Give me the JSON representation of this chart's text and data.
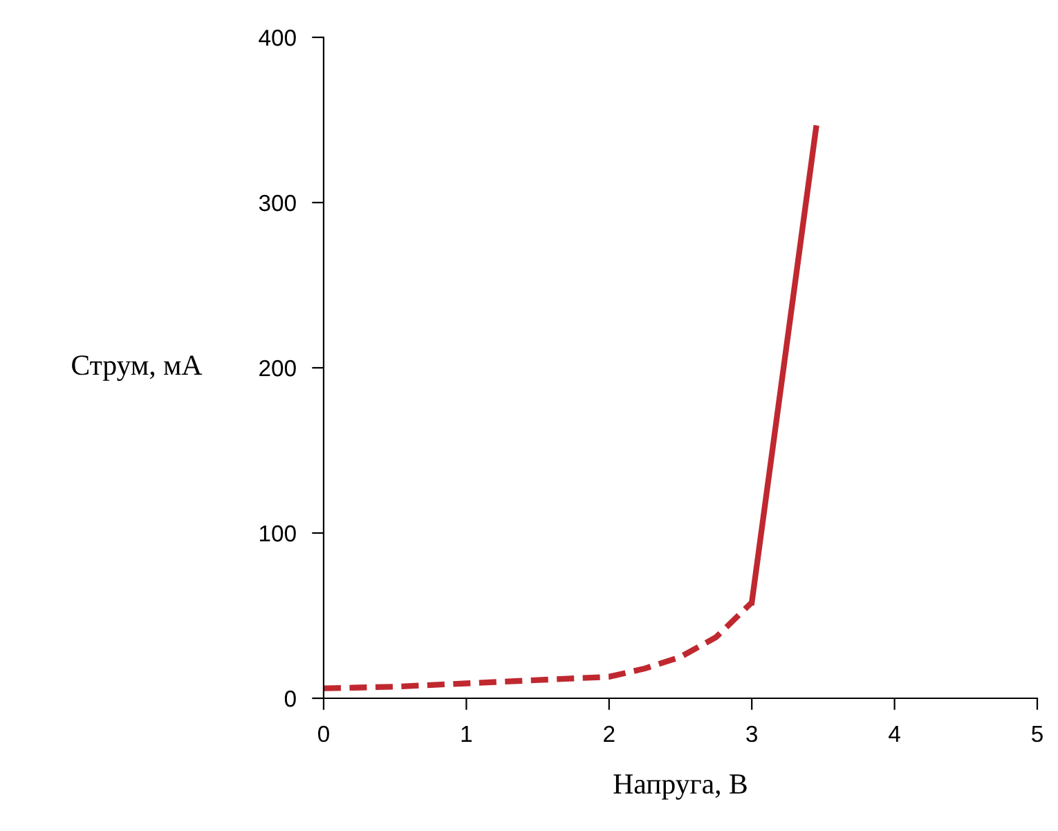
{
  "chart_data": {
    "type": "line",
    "xlabel": "Напруга, В",
    "ylabel": "Струм, мА",
    "xlim": [
      0,
      5
    ],
    "xticks": [
      0,
      1,
      2,
      3,
      4,
      5
    ],
    "ylim": [
      0,
      400
    ],
    "yticks": [
      0,
      100,
      200,
      300,
      400
    ],
    "grid": false,
    "marker": "none",
    "series": [
      {
        "color": "#c0282f",
        "line_style": "dashed",
        "x": [
          0,
          0.5,
          1,
          1.5,
          2,
          2.25,
          2.5,
          2.75,
          3
        ],
        "values": [
          6,
          7,
          9,
          11,
          13,
          18,
          25,
          37,
          58
        ]
      },
      {
        "color": "#c0282f",
        "line_style": "solid",
        "x": [
          3,
          3.45
        ],
        "values": [
          58,
          345
        ]
      }
    ]
  }
}
